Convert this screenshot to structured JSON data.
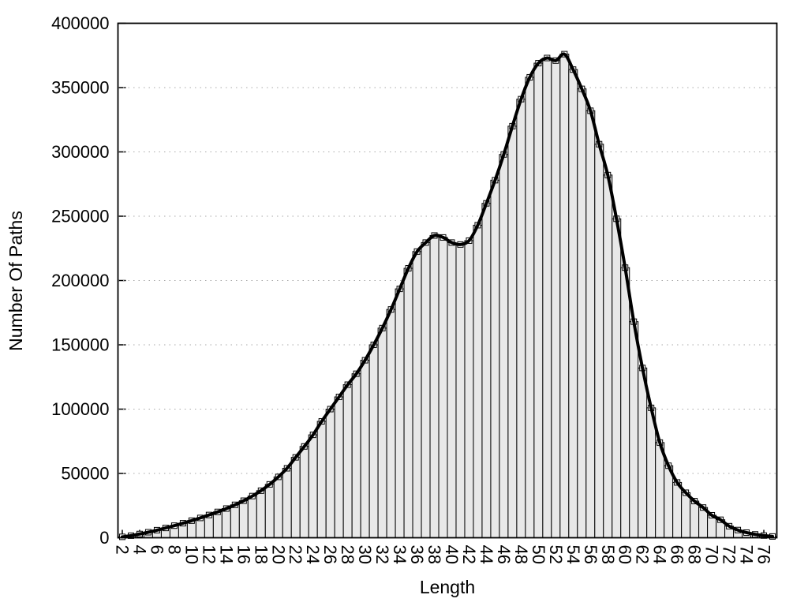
{
  "chart_data": {
    "type": "bar",
    "subtype": "histogram-with-smooth-line-and-square-markers",
    "title": "",
    "xlabel": "Length",
    "ylabel": "Number Of Paths",
    "xlim": [
      1.5,
      77.5
    ],
    "ylim": [
      0,
      400000
    ],
    "x_tick_labels": [
      2,
      4,
      6,
      8,
      10,
      12,
      14,
      16,
      18,
      20,
      22,
      24,
      26,
      28,
      30,
      32,
      34,
      36,
      38,
      40,
      42,
      44,
      46,
      48,
      50,
      52,
      54,
      56,
      58,
      60,
      62,
      64,
      66,
      68,
      70,
      72,
      74,
      76
    ],
    "y_tick_labels": [
      0,
      50000,
      100000,
      150000,
      200000,
      250000,
      300000,
      350000,
      400000
    ],
    "grid": "horizontal-dotted-at-y-ticks",
    "legend_position": "none",
    "categories": [
      2,
      3,
      4,
      5,
      6,
      7,
      8,
      9,
      10,
      11,
      12,
      13,
      14,
      15,
      16,
      17,
      18,
      19,
      20,
      21,
      22,
      23,
      24,
      25,
      26,
      27,
      28,
      29,
      30,
      31,
      32,
      33,
      34,
      35,
      36,
      37,
      38,
      39,
      40,
      41,
      42,
      43,
      44,
      45,
      46,
      47,
      48,
      49,
      50,
      51,
      52,
      53,
      54,
      55,
      56,
      57,
      58,
      59,
      60,
      61,
      62,
      63,
      64,
      65,
      66,
      67,
      68,
      69,
      70,
      71,
      72,
      73,
      74,
      75,
      76,
      77
    ],
    "values": [
      700,
      1600,
      2900,
      4300,
      5900,
      7600,
      9400,
      11300,
      13300,
      15400,
      17700,
      20100,
      22700,
      25600,
      28800,
      32400,
      36600,
      41500,
      47300,
      54000,
      62500,
      71000,
      80000,
      90500,
      100000,
      109500,
      119000,
      127500,
      138000,
      150000,
      163000,
      177500,
      193500,
      209500,
      222500,
      229500,
      235000,
      233500,
      229500,
      228000,
      231000,
      243000,
      260000,
      278000,
      298000,
      320000,
      341000,
      358000,
      369000,
      373000,
      371000,
      376000,
      364000,
      349000,
      332000,
      306000,
      282000,
      248000,
      210000,
      168000,
      132000,
      101000,
      74000,
      56000,
      43000,
      35000,
      28500,
      23500,
      17500,
      14000,
      9000,
      6000,
      4000,
      2600,
      1700,
      1000
    ],
    "colors": {
      "background": "#ffffff",
      "bar_fill": "#e8e8e8",
      "bar_stroke": "#000000",
      "line": "#000000",
      "marker_stroke": "#000000",
      "marker_fill": "#ffffff",
      "grid": "#a8a8a8",
      "frame": "#000000",
      "text": "#000000"
    }
  }
}
